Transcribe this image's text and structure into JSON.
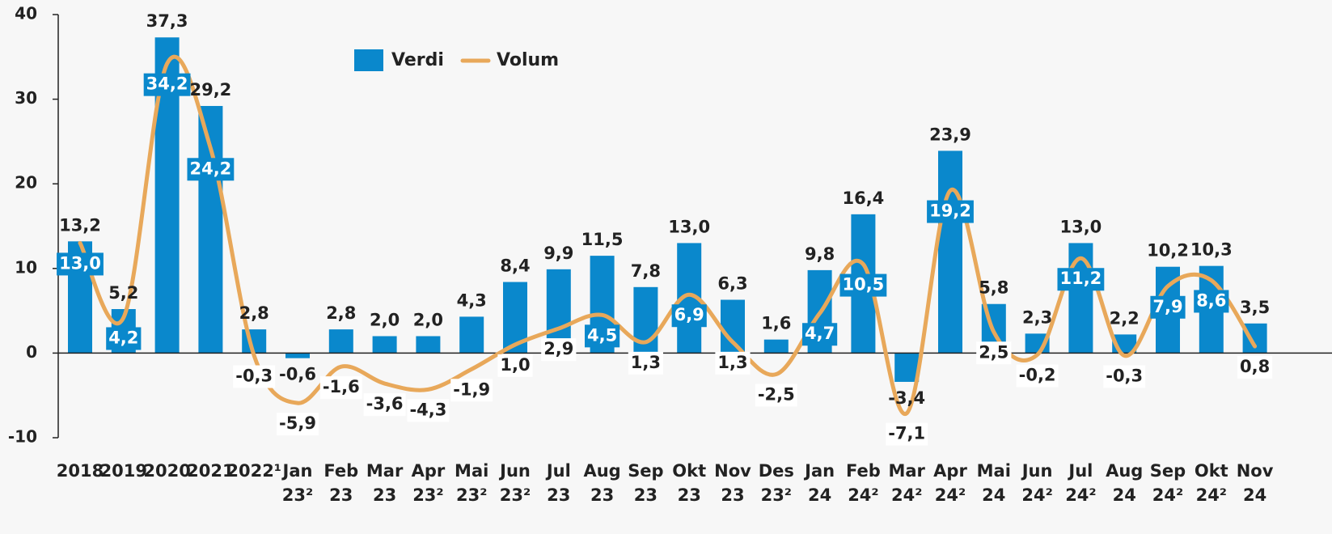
{
  "chart_data": {
    "type": "bar_line",
    "categories": [
      "2018",
      "2019",
      "2020",
      "2021",
      "2022¹",
      "Jan 23²",
      "Feb 23",
      "Mar 23",
      "Apr 23²",
      "Mai 23²",
      "Jun 23²",
      "Jul 23",
      "Aug 23",
      "Sep 23",
      "Okt 23",
      "Nov 23",
      "Des 23²",
      "Jan 24",
      "Feb 24²",
      "Mar 24²",
      "Apr 24²",
      "Mai 24",
      "Jun 24²",
      "Jul 24²",
      "Aug 24",
      "Sep 24²",
      "Okt 24²",
      "Nov 24"
    ],
    "series": [
      {
        "name": "Verdi",
        "type": "bar",
        "color": "#0a88cc",
        "values": [
          13.2,
          5.2,
          37.3,
          29.2,
          2.8,
          -0.6,
          2.8,
          2.0,
          2.0,
          4.3,
          8.4,
          9.9,
          11.5,
          7.8,
          13.0,
          6.3,
          1.6,
          9.8,
          16.4,
          -3.4,
          23.9,
          5.8,
          2.3,
          13.0,
          2.2,
          10.2,
          10.3,
          3.5
        ],
        "value_labels": [
          "13,2",
          "5,2",
          "37,3",
          "29,2",
          "2,8",
          "-0,6",
          "2,8",
          "2,0",
          "2,0",
          "4,3",
          "8,4",
          "9,9",
          "11,5",
          "7,8",
          "13,0",
          "6,3",
          "1,6",
          "9,8",
          "16,4",
          "-3,4",
          "23,9",
          "5,8",
          "2,3",
          "13,0",
          "2,2",
          "10,2",
          "10,3",
          "3,5"
        ]
      },
      {
        "name": "Volum",
        "type": "line",
        "color": "#e8a85a",
        "values": [
          13.0,
          4.2,
          34.2,
          24.2,
          -0.3,
          -5.9,
          -1.6,
          -3.6,
          -4.3,
          -1.9,
          1.0,
          2.9,
          4.5,
          1.3,
          6.9,
          1.3,
          -2.5,
          4.7,
          10.5,
          -7.1,
          19.2,
          2.5,
          -0.2,
          11.2,
          -0.3,
          7.9,
          8.6,
          0.8
        ],
        "value_labels": [
          "13,0",
          "4,2",
          "34,2",
          "24,2",
          "-0,3",
          "-5,9",
          "-1,6",
          "-3,6",
          "-4,3",
          "-1,9",
          "1,0",
          "2,9",
          "4,5",
          "1,3",
          "6,9",
          "1,3",
          "-2,5",
          "4,7",
          "10,5",
          "-7,1",
          "19,2",
          "2,5",
          "-0,2",
          "11,2",
          "-0,3",
          "7,9",
          "8,6",
          "0,8"
        ]
      }
    ],
    "ylim": [
      -10,
      40
    ],
    "yticks": [
      -10,
      0,
      10,
      20,
      30,
      40
    ],
    "legend": "top"
  }
}
